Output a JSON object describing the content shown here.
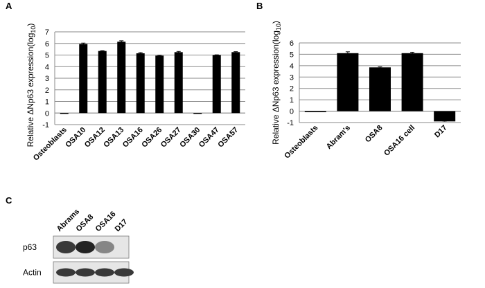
{
  "panels": {
    "a": "A",
    "b": "B",
    "c": "C"
  },
  "chart_data": [
    {
      "type": "bar",
      "ylabel_parts": [
        "Relative ΔNp63 expression(log",
        "10",
        ")"
      ],
      "categories": [
        "Osteoblasts",
        "OSA10",
        "OSA12",
        "OSA13",
        "OSA16",
        "OSA26",
        "OSA27",
        "OSA30",
        "OSA47",
        "OSA57"
      ],
      "values": [
        0,
        5.95,
        5.35,
        6.15,
        5.15,
        4.95,
        5.25,
        0,
        5.0,
        5.25
      ],
      "errors": [
        0,
        0.08,
        0.03,
        0.08,
        0.06,
        0.03,
        0.06,
        0,
        0.02,
        0.04
      ],
      "ylim": [
        -1,
        7
      ],
      "yticks": [
        -1,
        0,
        1,
        2,
        3,
        4,
        5,
        6,
        7
      ],
      "grid": true,
      "bar_color": "#000000"
    },
    {
      "type": "bar",
      "ylabel_parts": [
        "Relative ΔNp63 expression(log",
        "10",
        ")"
      ],
      "categories": [
        "Osteoblasts",
        "Abram's",
        "OSA8",
        "OSA16 cell",
        "D17"
      ],
      "values": [
        0,
        5.1,
        3.85,
        5.1,
        -0.9
      ],
      "errors": [
        0,
        0.12,
        0.04,
        0.08,
        0.02
      ],
      "ylim": [
        -1,
        6
      ],
      "yticks": [
        -1,
        0,
        1,
        2,
        3,
        4,
        5,
        6
      ],
      "grid": true,
      "bar_color": "#000000"
    }
  ],
  "western_blot": {
    "lanes": [
      "Abrams",
      "OSA8",
      "OSA16",
      "D17"
    ],
    "rows": [
      {
        "label": "p63",
        "intensity": [
          0.9,
          1.0,
          0.55,
          0.0
        ]
      },
      {
        "label": "Actin",
        "intensity": [
          0.9,
          0.9,
          0.9,
          0.9
        ]
      }
    ]
  }
}
